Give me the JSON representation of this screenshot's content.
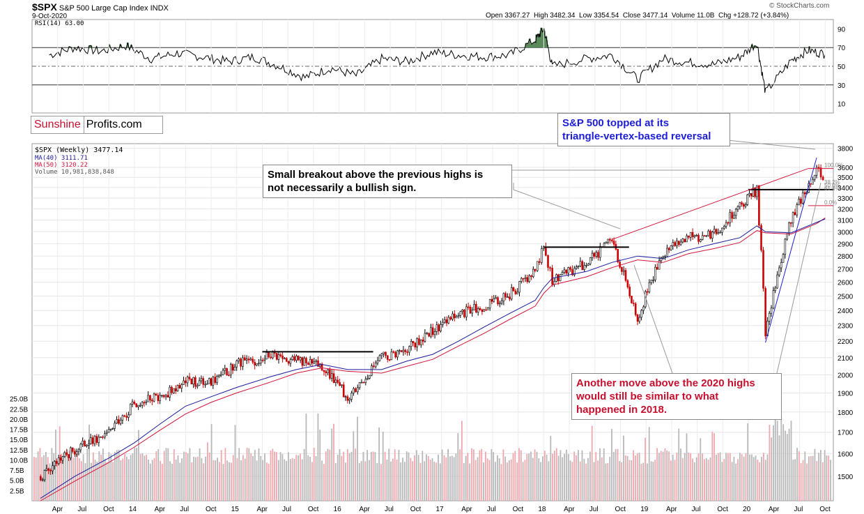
{
  "header": {
    "symbol": "$SPX",
    "name": "S&P 500 Large Cap Index",
    "exchange": "INDX",
    "date": "9-Oct-2020",
    "open": "Open 3367.27",
    "high": "High 3482.34",
    "low": "Low 3354.54",
    "close": "Close 3477.14",
    "volume": "Volume 11.0B",
    "chg": "Chg +128.72 (+3.84%)",
    "credit": "© StockCharts.com"
  },
  "brand": {
    "part1": "Sunshine",
    "part2": "Profits.com"
  },
  "rsi_label": "RSI(14) 63.00",
  "legend": {
    "price": "$SPX (Weekly) 3477.14",
    "ma40": "MA(40) 3111.71",
    "ma50": "MA(50) 3120.22",
    "volume": "Volume 10,981,838,848"
  },
  "annotations": {
    "topped": [
      "S&P 500 topped at its",
      "triangle-vertex-based reversal"
    ],
    "breakout": [
      "Small breakout above the previous highs is",
      "not necessarily a bullish sign."
    ],
    "another": [
      "Another move above the 2020 highs",
      "would still be similar to what",
      "happened in 2018."
    ]
  },
  "fib_labels": [
    "100.0%",
    "38.2%",
    "50.0%",
    "61.8%",
    "0.0%"
  ],
  "colors": {
    "up": "#000000",
    "down": "#cc0000",
    "ma40": "#1a1a9e",
    "ma50": "#d4143c",
    "blue_text": "#1e1ed6",
    "red_text": "#c8102e",
    "rsi_fill": "#5a8a5a"
  },
  "chart_data": [
    {
      "type": "line",
      "title": "RSI(14) 63.00",
      "ylim": [
        0,
        100
      ],
      "y_ticks": [
        "90",
        "70",
        "50",
        "30",
        "10"
      ],
      "reference_lines": [
        70,
        50,
        30
      ],
      "x": [
        "2013-03",
        "2013-06",
        "2013-09",
        "2013-12",
        "2014-03",
        "2014-06",
        "2014-09",
        "2014-12",
        "2015-03",
        "2015-06",
        "2015-09",
        "2015-12",
        "2016-03",
        "2016-06",
        "2016-09",
        "2016-12",
        "2017-03",
        "2017-06",
        "2017-09",
        "2017-12",
        "2018-01",
        "2018-02",
        "2018-06",
        "2018-09",
        "2018-12",
        "2019-03",
        "2019-06",
        "2019-09",
        "2019-12",
        "2020-02",
        "2020-03",
        "2020-06",
        "2020-08",
        "2020-10"
      ],
      "series": [
        {
          "values": [
            62,
            70,
            66,
            72,
            58,
            64,
            60,
            55,
            60,
            50,
            38,
            48,
            40,
            58,
            55,
            65,
            62,
            60,
            62,
            78,
            90,
            50,
            58,
            62,
            36,
            58,
            54,
            52,
            60,
            75,
            22,
            56,
            67,
            63
          ]
        }
      ]
    },
    {
      "type": "line",
      "title": "$SPX (Weekly) 3477.14",
      "ylim": [
        1400,
        3850
      ],
      "y_ticks": [
        "3800",
        "3600",
        "3500",
        "3400",
        "3300",
        "3200",
        "3100",
        "3000",
        "2900",
        "2800",
        "2700",
        "2600",
        "2500",
        "2400",
        "2300",
        "2200",
        "2100",
        "2000",
        "1900",
        "1800",
        "1700",
        "1600",
        "1500"
      ],
      "x_ticks": [
        "Apr",
        "Jul",
        "Oct",
        "14",
        "Apr",
        "Jul",
        "Oct",
        "15",
        "Apr",
        "Jul",
        "Oct",
        "16",
        "Apr",
        "Jul",
        "Oct",
        "17",
        "Apr",
        "Jul",
        "Oct",
        "18",
        "Apr",
        "Jul",
        "Oct",
        "19",
        "Apr",
        "Jul",
        "Oct",
        "20",
        "Apr",
        "Jul",
        "Oct"
      ],
      "x": [
        "2013-02",
        "2013-06",
        "2013-10",
        "2014-01",
        "2014-04",
        "2014-07",
        "2014-10",
        "2015-01",
        "2015-05",
        "2015-08",
        "2015-11",
        "2016-02",
        "2016-06",
        "2016-09",
        "2016-12",
        "2017-03",
        "2017-06",
        "2017-09",
        "2017-12",
        "2018-01",
        "2018-02",
        "2018-06",
        "2018-09",
        "2018-12",
        "2019-03",
        "2019-06",
        "2019-09",
        "2019-12",
        "2020-02",
        "2020-03",
        "2020-06",
        "2020-09",
        "2020-10"
      ],
      "series": [
        {
          "name": "$SPX (Weekly) 3477.14",
          "values": [
            1500,
            1620,
            1700,
            1840,
            1880,
            1960,
            1950,
            2060,
            2110,
            2080,
            2050,
            1880,
            2100,
            2160,
            2270,
            2380,
            2430,
            2510,
            2690,
            2870,
            2620,
            2740,
            2930,
            2350,
            2830,
            2950,
            2980,
            3230,
            3380,
            2240,
            3100,
            3580,
            3477
          ]
        },
        {
          "name": "MA(40) 3111.71",
          "values": [
            1410,
            1500,
            1580,
            1650,
            1740,
            1830,
            1880,
            1930,
            1990,
            2030,
            2060,
            2030,
            2030,
            2080,
            2120,
            2200,
            2290,
            2380,
            2470,
            2560,
            2630,
            2680,
            2750,
            2800,
            2780,
            2850,
            2900,
            2950,
            3050,
            3000,
            2990,
            3080,
            3111
          ]
        },
        {
          "name": "MA(50) 3120.22",
          "values": [
            1400,
            1480,
            1560,
            1630,
            1710,
            1790,
            1850,
            1900,
            1960,
            2010,
            2040,
            2020,
            2010,
            2050,
            2090,
            2170,
            2250,
            2340,
            2430,
            2520,
            2580,
            2640,
            2710,
            2770,
            2750,
            2820,
            2860,
            2910,
            3010,
            2990,
            2980,
            3070,
            3120
          ]
        }
      ],
      "annotation_values": {
        "horizontal_highs": [
          2872,
          2135,
          2940,
          3380
        ],
        "low_2020": 2192,
        "fib_top": 3588
      }
    },
    {
      "type": "bar",
      "title": "Volume 10,981,838,848",
      "ylim": [
        0,
        27000000000
      ],
      "y_ticks": [
        "25.0B",
        "22.5B",
        "20.0B",
        "17.5B",
        "15.0B",
        "12.5B",
        "10.0B",
        "7.5B",
        "5.0B",
        "2.5B"
      ],
      "values_note": "weekly volume, billions"
    }
  ]
}
